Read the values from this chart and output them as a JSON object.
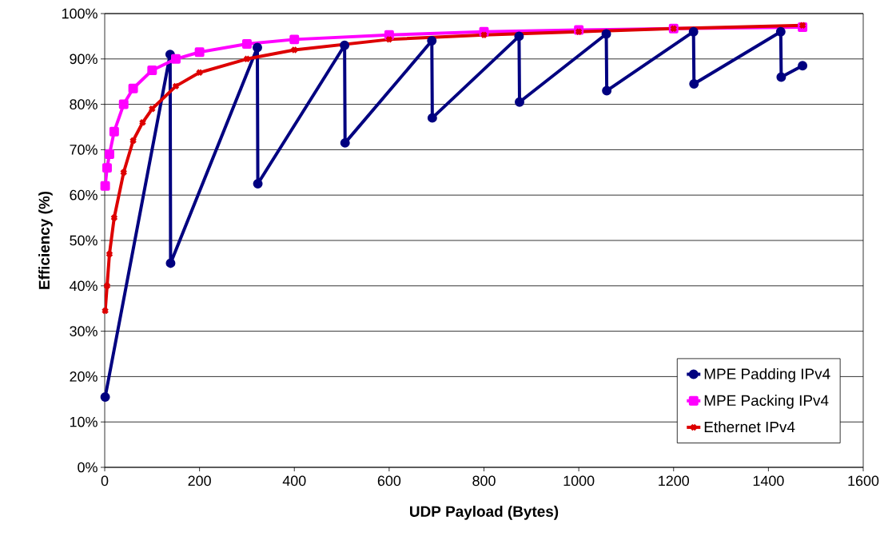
{
  "chart_data": {
    "type": "line",
    "xlabel": "UDP Payload (Bytes)",
    "ylabel": "Efficiency (%)",
    "xlim": [
      0,
      1600
    ],
    "ylim": [
      0,
      100
    ],
    "xticks": [
      0,
      200,
      400,
      600,
      800,
      1000,
      1200,
      1400,
      1600
    ],
    "yticks": [
      {
        "value": 0,
        "label": "0%"
      },
      {
        "value": 10,
        "label": "10%"
      },
      {
        "value": 20,
        "label": "20%"
      },
      {
        "value": 30,
        "label": "30%"
      },
      {
        "value": 40,
        "label": "40%"
      },
      {
        "value": 50,
        "label": "50%"
      },
      {
        "value": 60,
        "label": "60%"
      },
      {
        "value": 70,
        "label": "70%"
      },
      {
        "value": 80,
        "label": "80%"
      },
      {
        "value": 90,
        "label": "90%"
      },
      {
        "value": 100,
        "label": "100%"
      }
    ],
    "grid": "y",
    "legend": "bottom right",
    "line_style": "solid",
    "series": [
      {
        "name": "MPE Padding IPv4",
        "color": "#000080",
        "marker": "circle",
        "x": [
          1,
          138,
          139,
          322,
          323,
          506,
          507,
          690,
          691,
          874,
          875,
          1058,
          1059,
          1242,
          1243,
          1426,
          1427,
          1472
        ],
        "values": [
          15.5,
          91,
          45,
          92.5,
          62.5,
          93,
          71.5,
          94,
          77,
          95,
          80.5,
          95.5,
          83,
          96,
          84.5,
          96,
          86,
          88.5
        ]
      },
      {
        "name": "MPE Packing IPv4",
        "color": "#ff00ff",
        "marker": "square",
        "x": [
          1,
          5,
          10,
          20,
          40,
          60,
          100,
          150,
          200,
          300,
          400,
          600,
          800,
          1000,
          1200,
          1472
        ],
        "values": [
          62,
          66,
          69,
          74,
          80,
          83.5,
          87.5,
          90,
          91.5,
          93.3,
          94.3,
          95.3,
          96,
          96.4,
          96.7,
          97
        ]
      },
      {
        "name": "Ethernet IPv4",
        "color": "#dd0000",
        "marker": "cross",
        "x": [
          1,
          5,
          10,
          20,
          40,
          60,
          80,
          100,
          150,
          200,
          300,
          400,
          600,
          800,
          1000,
          1200,
          1472
        ],
        "values": [
          34.5,
          40,
          47,
          55,
          65,
          72,
          76,
          79,
          84,
          87,
          90,
          92,
          94.3,
          95.3,
          96,
          96.7,
          97.4
        ]
      }
    ]
  }
}
